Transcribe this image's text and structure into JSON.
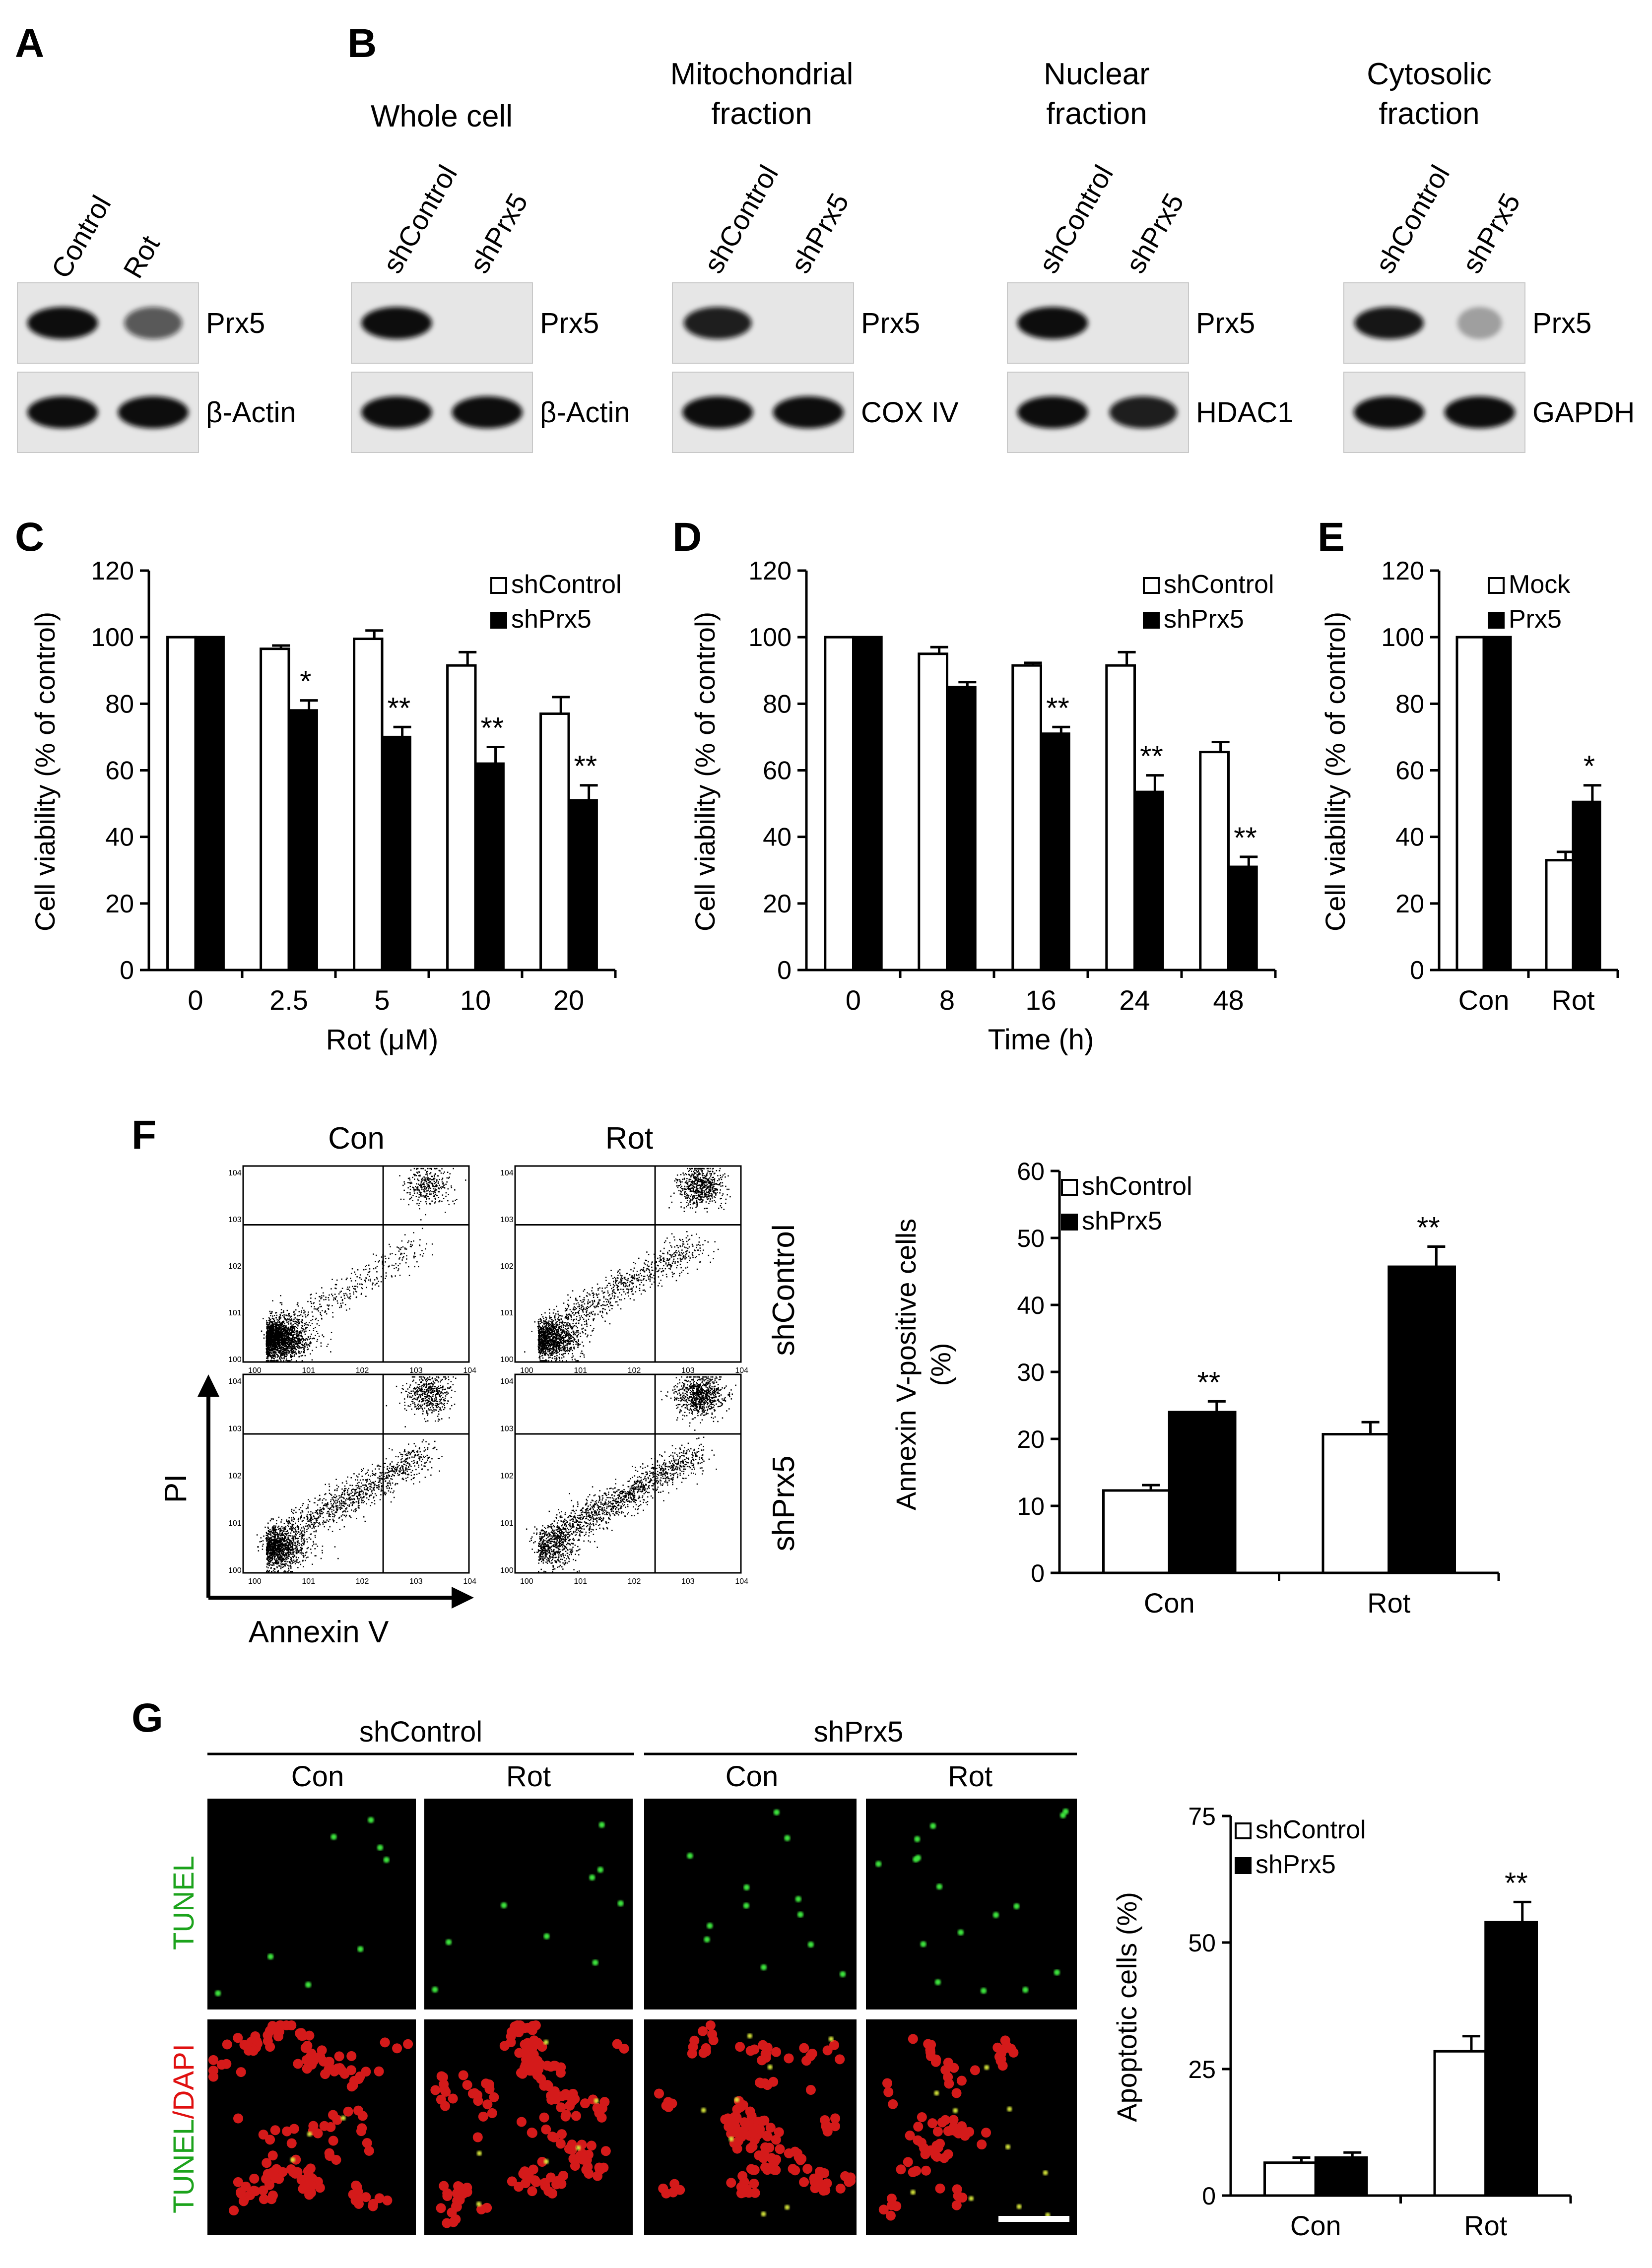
{
  "panels": {
    "A": {
      "letter": "A",
      "lanes": [
        "Control",
        "Rot"
      ],
      "blots": [
        {
          "label": "Prx5",
          "bands": [
            1.0,
            0.55
          ]
        },
        {
          "label": "β-Actin",
          "bands": [
            1.0,
            1.0
          ]
        }
      ]
    },
    "B": {
      "letter": "B",
      "groups": [
        {
          "title": [
            "Whole cell"
          ],
          "lanes": [
            "shControl",
            "shPrx5"
          ],
          "blots": [
            {
              "label": "Prx5",
              "bands": [
                1.0,
                0.0
              ]
            },
            {
              "label": "β-Actin",
              "bands": [
                1.0,
                1.0
              ]
            }
          ]
        },
        {
          "title": [
            "Mitochondrial",
            "fraction"
          ],
          "lanes": [
            "shControl",
            "shPrx5"
          ],
          "blots": [
            {
              "label": "Prx5",
              "bands": [
                0.9,
                0.0
              ]
            },
            {
              "label": "COX IV",
              "bands": [
                1.0,
                1.0
              ]
            }
          ]
        },
        {
          "title": [
            "Nuclear",
            "fraction"
          ],
          "lanes": [
            "shControl",
            "shPrx5"
          ],
          "blots": [
            {
              "label": "Prx5",
              "bands": [
                1.0,
                0.0
              ]
            },
            {
              "label": "HDAC1",
              "bands": [
                1.0,
                0.9
              ]
            }
          ]
        },
        {
          "title": [
            "Cytosolic",
            "fraction"
          ],
          "lanes": [
            "shControl",
            "shPrx5"
          ],
          "blots": [
            {
              "label": "Prx5",
              "bands": [
                0.95,
                0.08
              ]
            },
            {
              "label": "GAPDH",
              "bands": [
                1.0,
                1.0
              ]
            }
          ]
        }
      ]
    },
    "F": {
      "letter": "F",
      "columns": [
        "Con",
        "Rot"
      ],
      "rows": [
        "shControl",
        "shPrx5"
      ],
      "axis_x": "Annexin V",
      "axis_y": "PI"
    },
    "G": {
      "letter": "G",
      "groups": [
        "shControl",
        "shPrx5"
      ],
      "columns": [
        "Con",
        "Rot",
        "Con",
        "Rot"
      ],
      "row_labels": [
        {
          "green": "TUNEL",
          "red": ""
        },
        {
          "green": "TUNEL",
          "red": "/DAPI"
        }
      ]
    }
  },
  "chart_data": [
    {
      "panel": "C",
      "type": "bar",
      "categories": [
        "0",
        "2.5",
        "5",
        "10",
        "20"
      ],
      "series": [
        {
          "name": "shControl",
          "values": [
            100,
            96.5,
            99.5,
            91.5,
            77
          ],
          "errors": [
            0,
            1,
            2.5,
            4,
            5
          ]
        },
        {
          "name": "shPrx5",
          "values": [
            100,
            78,
            70,
            62,
            51
          ],
          "errors": [
            0,
            3,
            3,
            5,
            4.5
          ]
        }
      ],
      "significance": [
        [
          "",
          ""
        ],
        [
          "",
          "*"
        ],
        [
          "",
          "**"
        ],
        [
          "",
          "**"
        ],
        [
          "",
          "**"
        ]
      ],
      "xlabel": "Rot (μM)",
      "ylabel": "Cell viability (% of control)",
      "ylim": [
        0,
        120
      ],
      "yticks": [
        0,
        20,
        40,
        60,
        80,
        100,
        120
      ],
      "legend": "top-right"
    },
    {
      "panel": "D",
      "type": "bar",
      "categories": [
        "0",
        "8",
        "16",
        "24",
        "48"
      ],
      "series": [
        {
          "name": "shControl",
          "values": [
            100,
            95,
            91.5,
            91.5,
            65.5
          ],
          "errors": [
            0,
            2,
            0.8,
            4,
            3
          ]
        },
        {
          "name": "shPrx5",
          "values": [
            100,
            85,
            71,
            53.5,
            31
          ],
          "errors": [
            0,
            1.5,
            2,
            5,
            3
          ]
        }
      ],
      "significance": [
        [
          "",
          ""
        ],
        [
          "",
          ""
        ],
        [
          "",
          "**"
        ],
        [
          "",
          "**"
        ],
        [
          "",
          "**"
        ]
      ],
      "xlabel": "Time (h)",
      "ylabel": "Cell viability (% of control)",
      "ylim": [
        0,
        120
      ],
      "yticks": [
        0,
        20,
        40,
        60,
        80,
        100,
        120
      ],
      "legend": "top-right"
    },
    {
      "panel": "E",
      "type": "bar",
      "categories": [
        "Con",
        "Rot"
      ],
      "series": [
        {
          "name": "Mock",
          "values": [
            100,
            33
          ],
          "errors": [
            0,
            2.5
          ]
        },
        {
          "name": "Prx5",
          "values": [
            100,
            50.5
          ],
          "errors": [
            0,
            5
          ]
        }
      ],
      "significance": [
        [
          "",
          ""
        ],
        [
          "",
          "*"
        ]
      ],
      "xlabel": "",
      "ylabel": "Cell viability (% of control)",
      "ylim": [
        0,
        120
      ],
      "yticks": [
        0,
        20,
        40,
        60,
        80,
        100,
        120
      ],
      "legend": "top-right"
    },
    {
      "panel": "F",
      "type": "bar",
      "categories": [
        "Con",
        "Rot"
      ],
      "series": [
        {
          "name": "shControl",
          "values": [
            12.3,
            20.7
          ],
          "errors": [
            0.8,
            1.8
          ]
        },
        {
          "name": "shPrx5",
          "values": [
            24,
            45.7
          ],
          "errors": [
            1.6,
            3
          ]
        }
      ],
      "significance": [
        [
          "",
          "**"
        ],
        [
          "",
          "**"
        ]
      ],
      "xlabel": "",
      "ylabel": "Annexin V-positive cells (%)",
      "ylim": [
        0,
        60
      ],
      "yticks": [
        0,
        10,
        20,
        30,
        40,
        50,
        60
      ],
      "legend": "top-left"
    },
    {
      "panel": "G",
      "type": "bar",
      "categories": [
        "Con",
        "Rot"
      ],
      "series": [
        {
          "name": "shControl",
          "values": [
            6.5,
            28.5
          ],
          "errors": [
            1,
            3
          ]
        },
        {
          "name": "shPrx5",
          "values": [
            7.5,
            54
          ],
          "errors": [
            1,
            4
          ]
        }
      ],
      "significance": [
        [
          "",
          ""
        ],
        [
          "",
          "**"
        ]
      ],
      "xlabel": "",
      "ylabel": "Apoptotic cells (%)",
      "ylim": [
        0,
        75
      ],
      "yticks": [
        0,
        25,
        50,
        75
      ],
      "legend": "top-left"
    }
  ]
}
